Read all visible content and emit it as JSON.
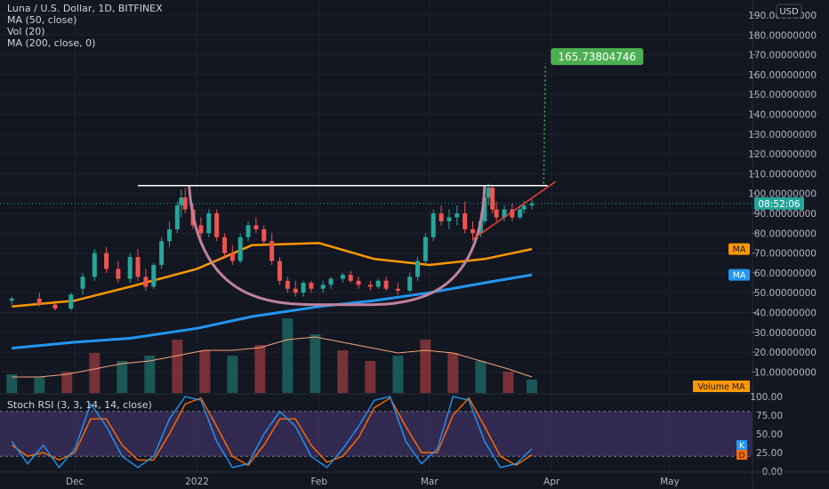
{
  "header": {
    "title": "Luna / U.S. Dollar, 1D, BITFINEX",
    "indicators": [
      "MA (50, close)",
      "Vol (20)",
      "MA (200, close, 0)"
    ]
  },
  "currency_badge": "USD",
  "price_ticks": [
    "190.00000000",
    "180.00000000",
    "170.00000000",
    "160.00000000",
    "150.00000000",
    "140.00000000",
    "130.00000000",
    "120.00000000",
    "110.00000000",
    "100.00000000",
    "90.00000000",
    "80.00000000",
    "70.00000000",
    "60.00000000",
    "50.00000000",
    "40.00000000",
    "30.00000000",
    "20.00000000",
    "10.00000000"
  ],
  "price_tick_values": [
    190,
    180,
    170,
    160,
    150,
    140,
    130,
    120,
    110,
    100,
    90,
    80,
    70,
    60,
    50,
    40,
    30,
    20,
    10
  ],
  "countdown_label": "08:52:06",
  "ma50_tag": "MA",
  "ma200_tag": "MA",
  "volume_ma_tag": "Volume MA",
  "target_label": "165.73804746",
  "stoch": {
    "title": "Stoch RSI (3, 3, 14, 14, close)",
    "ticks": [
      "100.00",
      "75.00",
      "50.00",
      "25.00",
      "0.00"
    ],
    "tick_values": [
      100,
      75,
      50,
      25,
      0
    ],
    "upper_band": 80,
    "lower_band": 20,
    "k_tag": "K",
    "d_tag": "D"
  },
  "time_axis": {
    "labels": [
      "Dec",
      "2022",
      "Feb",
      "Mar",
      "Apr",
      "May"
    ],
    "dates": [
      "2021-12-01",
      "2022-01-01",
      "2022-02-01",
      "2022-03-01",
      "2022-04-01",
      "2022-05-01"
    ]
  },
  "colors": {
    "background": "#131722",
    "candle_up": "#26a69a",
    "candle_down": "#ef5350",
    "ma50": "#ff9800",
    "ma200": "#2196f3",
    "cup_arc": "#c0839b",
    "resistance": "#ffffff",
    "trendline": "#f44336",
    "target": "#4caf50",
    "stoch_k": "#2196f3",
    "stoch_d": "#ff6d00",
    "stoch_band": "#7e57c2"
  },
  "chart_data": [
    {
      "type": "candlestick",
      "title": "Luna / U.S. Dollar, 1D, BITFINEX",
      "ylabel": "USD",
      "ylim": [
        0,
        195
      ],
      "xlim": [
        "2021-11-12",
        "2022-05-22"
      ],
      "candles": [
        [
          "2021-11-15",
          46,
          48,
          44,
          47
        ],
        [
          "2021-11-22",
          47,
          50,
          43,
          44
        ],
        [
          "2021-11-26",
          44,
          46,
          41,
          42
        ],
        [
          "2021-11-30",
          42,
          50,
          41,
          49
        ],
        [
          "2021-12-03",
          52,
          60,
          49,
          58
        ],
        [
          "2021-12-06",
          58,
          72,
          56,
          70
        ],
        [
          "2021-12-09",
          70,
          73,
          60,
          62
        ],
        [
          "2021-12-12",
          62,
          66,
          55,
          57
        ],
        [
          "2021-12-15",
          57,
          70,
          55,
          68
        ],
        [
          "2021-12-17",
          68,
          72,
          56,
          58
        ],
        [
          "2021-12-19",
          58,
          62,
          51,
          53
        ],
        [
          "2021-12-21",
          53,
          65,
          52,
          64
        ],
        [
          "2021-12-23",
          64,
          78,
          62,
          76
        ],
        [
          "2021-12-25",
          76,
          86,
          73,
          82
        ],
        [
          "2021-12-27",
          82,
          96,
          80,
          94
        ],
        [
          "2021-12-28",
          94,
          102,
          88,
          98
        ],
        [
          "2021-12-29",
          98,
          103,
          90,
          92
        ],
        [
          "2021-12-31",
          92,
          95,
          82,
          84
        ],
        [
          "2022-01-02",
          84,
          88,
          78,
          80
        ],
        [
          "2022-01-04",
          80,
          92,
          78,
          90
        ],
        [
          "2022-01-06",
          90,
          92,
          76,
          78
        ],
        [
          "2022-01-08",
          78,
          80,
          68,
          70
        ],
        [
          "2022-01-10",
          70,
          74,
          64,
          66
        ],
        [
          "2022-01-12",
          66,
          80,
          65,
          78
        ],
        [
          "2022-01-14",
          78,
          86,
          76,
          84
        ],
        [
          "2022-01-16",
          84,
          88,
          80,
          82
        ],
        [
          "2022-01-18",
          82,
          84,
          74,
          76
        ],
        [
          "2022-01-20",
          76,
          80,
          64,
          66
        ],
        [
          "2022-01-22",
          66,
          68,
          54,
          56
        ],
        [
          "2022-01-24",
          56,
          58,
          50,
          52
        ],
        [
          "2022-01-26",
          52,
          56,
          48,
          50
        ],
        [
          "2022-01-28",
          50,
          56,
          48,
          55
        ],
        [
          "2022-01-30",
          55,
          56,
          50,
          52
        ],
        [
          "2022-02-02",
          52,
          56,
          50,
          54
        ],
        [
          "2022-02-04",
          54,
          58,
          52,
          57
        ],
        [
          "2022-02-07",
          57,
          60,
          55,
          59
        ],
        [
          "2022-02-09",
          59,
          61,
          55,
          56
        ],
        [
          "2022-02-11",
          56,
          58,
          52,
          54
        ],
        [
          "2022-02-14",
          54,
          56,
          51,
          53
        ],
        [
          "2022-02-16",
          53,
          57,
          52,
          56
        ],
        [
          "2022-02-18",
          56,
          58,
          51,
          52
        ],
        [
          "2022-02-21",
          52,
          55,
          49,
          51
        ],
        [
          "2022-02-24",
          51,
          60,
          50,
          58
        ],
        [
          "2022-02-26",
          58,
          68,
          56,
          66
        ],
        [
          "2022-02-28",
          66,
          80,
          64,
          78
        ],
        [
          "2022-03-02",
          78,
          92,
          76,
          90
        ],
        [
          "2022-03-04",
          90,
          94,
          84,
          86
        ],
        [
          "2022-03-06",
          86,
          92,
          82,
          88
        ],
        [
          "2022-03-08",
          88,
          94,
          84,
          90
        ],
        [
          "2022-03-10",
          90,
          96,
          80,
          82
        ],
        [
          "2022-03-12",
          82,
          86,
          76,
          80
        ],
        [
          "2022-03-14",
          80,
          88,
          78,
          86
        ],
        [
          "2022-03-15",
          86,
          100,
          85,
          98
        ],
        [
          "2022-03-16",
          98,
          105,
          94,
          103
        ],
        [
          "2022-03-17",
          103,
          104,
          90,
          92
        ],
        [
          "2022-03-18",
          92,
          96,
          86,
          88
        ],
        [
          "2022-03-20",
          88,
          94,
          86,
          92
        ],
        [
          "2022-03-22",
          92,
          95,
          86,
          88
        ],
        [
          "2022-03-24",
          88,
          94,
          87,
          92
        ],
        [
          "2022-03-25",
          92,
          96,
          90,
          94
        ],
        [
          "2022-03-27",
          94,
          97,
          92,
          95
        ]
      ],
      "series": [
        {
          "name": "MA (50, close)",
          "x": [
            "2021-11-15",
            "2021-12-01",
            "2021-12-15",
            "2022-01-01",
            "2022-01-15",
            "2022-02-01",
            "2022-02-15",
            "2022-03-01",
            "2022-03-15",
            "2022-03-27"
          ],
          "values": [
            43,
            46,
            53,
            62,
            74,
            75,
            67,
            64,
            67,
            72
          ]
        },
        {
          "name": "MA (200, close, 0)",
          "x": [
            "2021-11-15",
            "2021-12-01",
            "2021-12-15",
            "2022-01-01",
            "2022-01-15",
            "2022-02-01",
            "2022-02-15",
            "2022-03-01",
            "2022-03-15",
            "2022-03-27"
          ],
          "values": [
            22,
            25,
            27,
            32,
            38,
            43,
            46,
            50,
            55,
            59
          ]
        }
      ],
      "volume": {
        "name": "Vol (20)",
        "ma_label": "Volume MA",
        "x": [
          "2021-11-15",
          "2021-11-22",
          "2021-11-29",
          "2021-12-06",
          "2021-12-13",
          "2021-12-20",
          "2021-12-27",
          "2022-01-03",
          "2022-01-10",
          "2022-01-17",
          "2022-01-24",
          "2022-01-31",
          "2022-02-07",
          "2022-02-14",
          "2022-02-21",
          "2022-02-28",
          "2022-03-07",
          "2022-03-14",
          "2022-03-21",
          "2022-03-27"
        ],
        "values": [
          7,
          6,
          8,
          15,
          12,
          14,
          20,
          16,
          14,
          18,
          28,
          22,
          16,
          12,
          14,
          20,
          15,
          12,
          8,
          5
        ],
        "ma": [
          6,
          6,
          7,
          9,
          11,
          12,
          14,
          16,
          16,
          17,
          20,
          21,
          19,
          17,
          15,
          16,
          15,
          12,
          9,
          6
        ]
      },
      "annotations": {
        "resistance": {
          "y": 104,
          "from": "2021-12-17",
          "to": "2022-03-31"
        },
        "trendline": {
          "from": [
            "2022-03-12",
            77
          ],
          "to": [
            "2022-04-02",
            106
          ]
        },
        "target": {
          "y": 165.73804746,
          "date": "2022-03-30",
          "base_y": 105
        },
        "cup": {
          "left": [
            "2021-12-30",
            104
          ],
          "bottom": [
            "2022-02-06",
            44
          ],
          "right": [
            "2022-03-15",
            104
          ]
        }
      }
    },
    {
      "type": "line",
      "title": "Stoch RSI (3, 3, 14, 14, close)",
      "ylim": [
        0,
        100
      ],
      "x": [
        "2021-11-15",
        "2021-11-19",
        "2021-11-23",
        "2021-11-27",
        "2021-12-01",
        "2021-12-05",
        "2021-12-09",
        "2021-12-13",
        "2021-12-17",
        "2021-12-21",
        "2021-12-25",
        "2021-12-29",
        "2022-01-02",
        "2022-01-06",
        "2022-01-10",
        "2022-01-14",
        "2022-01-18",
        "2022-01-22",
        "2022-01-26",
        "2022-01-30",
        "2022-02-03",
        "2022-02-07",
        "2022-02-11",
        "2022-02-15",
        "2022-02-19",
        "2022-02-23",
        "2022-02-27",
        "2022-03-03",
        "2022-03-07",
        "2022-03-11",
        "2022-03-15",
        "2022-03-19",
        "2022-03-23",
        "2022-03-27"
      ],
      "series": [
        {
          "name": "K",
          "values": [
            40,
            10,
            35,
            5,
            30,
            90,
            60,
            20,
            5,
            20,
            70,
            100,
            95,
            40,
            5,
            10,
            50,
            80,
            60,
            20,
            5,
            30,
            60,
            95,
            100,
            40,
            10,
            30,
            100,
            95,
            40,
            5,
            10,
            30
          ]
        },
        {
          "name": "D",
          "values": [
            35,
            20,
            25,
            15,
            25,
            70,
            70,
            35,
            15,
            15,
            50,
            90,
            98,
            60,
            20,
            8,
            35,
            70,
            70,
            35,
            12,
            20,
            45,
            85,
            98,
            60,
            25,
            25,
            75,
            98,
            60,
            20,
            8,
            22
          ]
        }
      ],
      "bands": [
        20,
        80
      ]
    }
  ]
}
